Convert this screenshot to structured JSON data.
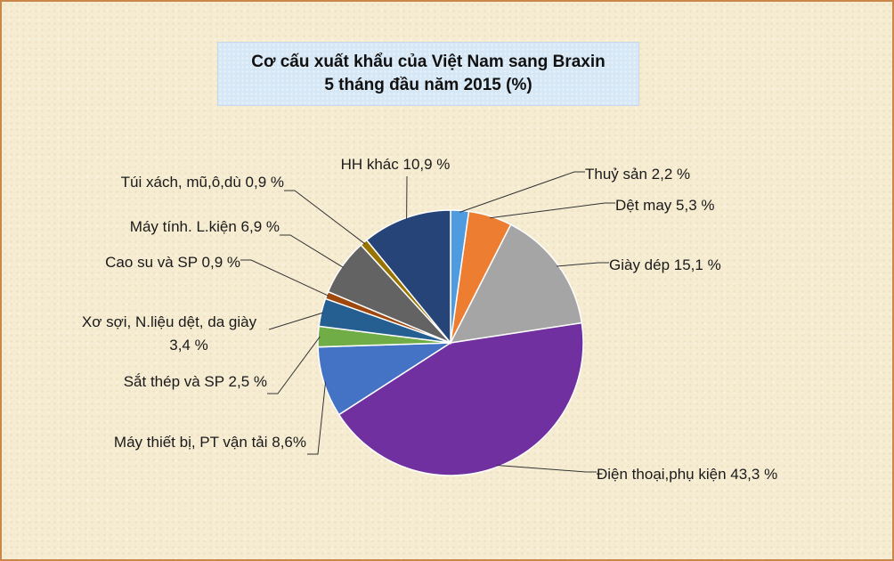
{
  "title_line1": "Cơ cấu xuất khẩu của Việt Nam sang Braxin",
  "title_line2": "5 tháng đầu năm 2015 (%)",
  "chart_data": {
    "type": "pie",
    "title": "Cơ cấu xuất khẩu của Việt Nam sang Braxin 5 tháng đầu năm 2015 (%)",
    "slices": [
      {
        "label": "Thuỷ sản  2,2 %",
        "value": 2.2,
        "color": "#4f9be0"
      },
      {
        "label": "Dệt may 5,3 %",
        "value": 5.3,
        "color": "#ed7d31"
      },
      {
        "label": "Giày dép  15,1 %",
        "value": 15.1,
        "color": "#a5a5a5"
      },
      {
        "label": "Điện thoại,phụ kiện 43,3 %",
        "value": 43.3,
        "color": "#7030a0"
      },
      {
        "label": "Máy thiết bị, PT vận tải 8,6%",
        "value": 8.6,
        "color": "#4472c4"
      },
      {
        "label": "Sắt thép và SP  2,5 %",
        "value": 2.5,
        "color": "#70ad47"
      },
      {
        "label": "Xơ sợi, N.liệu dệt, da giày|3,4 %",
        "value": 3.4,
        "color": "#255e91"
      },
      {
        "label": "Cao su và SP 0,9 %",
        "value": 0.9,
        "color": "#9e480e"
      },
      {
        "label": "Máy tính. L.kiện 6,9 %",
        "value": 6.9,
        "color": "#636363"
      },
      {
        "label": "Túi xách, mũ,ô,dù 0,9 %",
        "value": 0.9,
        "color": "#997300"
      },
      {
        "label": "HH khác  10,9 %",
        "value": 10.9,
        "color": "#264478"
      }
    ]
  }
}
